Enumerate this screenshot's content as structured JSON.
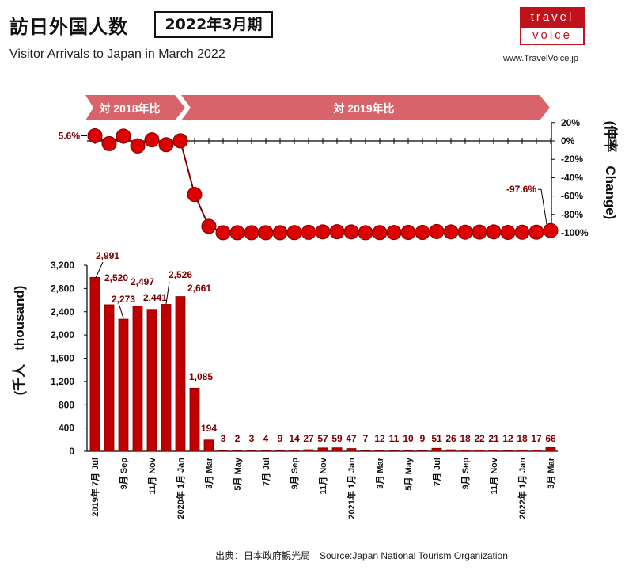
{
  "header": {
    "title": "訪日外国人数",
    "badge": "2022年3月期",
    "subtitle": "Visitor Arrivals to Japan in March 2022",
    "logo_top": "travel",
    "logo_bottom": "voice",
    "site": "www.TravelVoice.jp",
    "source": "出典：日本政府観光局　Source:Japan  National Tourism  Organization"
  },
  "colors": {
    "bar": "#c00000",
    "bar_stroke": "#7a0000",
    "dot": "#dd0000",
    "label": "#7a0000",
    "ribbon": "#d9636b"
  },
  "chart_data": [
    {
      "type": "line",
      "ribbons": [
        "対 2018年比",
        "対 2019年比"
      ],
      "ylabel": "(伸率　Change)",
      "yticks": [
        "20%",
        "0%",
        "-20%",
        "-40%",
        "-60%",
        "-80%",
        "-100%"
      ],
      "ylim": [
        -100,
        20
      ],
      "values": [
        5.6,
        -2.9,
        5.3,
        -5.5,
        1.2,
        -4.1,
        0.1,
        -58.3,
        -93.0,
        -99.9,
        -99.9,
        -99.9,
        -99.9,
        -99.9,
        -99.8,
        -99.5,
        -99.0,
        -98.8,
        -99.0,
        -99.9,
        -99.8,
        -99.7,
        -99.6,
        -99.6,
        -98.6,
        -99.0,
        -99.3,
        -99.2,
        -99.0,
        -99.6,
        -99.4,
        -99.3,
        -97.6
      ],
      "annotations": [
        {
          "index": 0,
          "text": "5.6%"
        },
        {
          "index": 32,
          "text": "-97.6%"
        }
      ]
    },
    {
      "type": "bar",
      "ylabel": "(千人　thousand)",
      "ylim": [
        0,
        3200
      ],
      "yticks": [
        "0",
        "400",
        "800",
        "1,200",
        "1,600",
        "2,000",
        "2,400",
        "2,800",
        "3,200"
      ],
      "values": [
        2991,
        2520,
        2273,
        2497,
        2441,
        2526,
        2661,
        1085,
        194,
        3,
        2,
        3,
        4,
        9,
        14,
        27,
        57,
        59,
        47,
        7,
        12,
        11,
        10,
        9,
        51,
        26,
        18,
        22,
        21,
        12,
        18,
        17,
        66
      ],
      "data_labels": [
        "2,991",
        "2,520",
        "2,273",
        "2,497",
        "2,441",
        "2,526",
        "2,661",
        "1,085",
        "194",
        "3",
        "2",
        "3",
        "4",
        "9",
        "14",
        "27",
        "57",
        "59",
        "47",
        "7",
        "12",
        "11",
        "10",
        "9",
        "51",
        "26",
        "18",
        "22",
        "21",
        "12",
        "18",
        "17",
        "66"
      ],
      "x_tick_labels": [
        {
          "index": 0,
          "text": "2019年 7月 Jul"
        },
        {
          "index": 2,
          "text": "9月 Sep"
        },
        {
          "index": 4,
          "text": "11月 Nov"
        },
        {
          "index": 6,
          "text": "2020年 1月 Jan"
        },
        {
          "index": 8,
          "text": "3月 Mar"
        },
        {
          "index": 10,
          "text": "5月 May"
        },
        {
          "index": 12,
          "text": "7月 Jul"
        },
        {
          "index": 14,
          "text": "9月 Sep"
        },
        {
          "index": 16,
          "text": "11月 Nov"
        },
        {
          "index": 18,
          "text": "2021年 1月 Jan"
        },
        {
          "index": 20,
          "text": "3月 Mar"
        },
        {
          "index": 22,
          "text": "5月 May"
        },
        {
          "index": 24,
          "text": "7月 Jul"
        },
        {
          "index": 26,
          "text": "9月 Sep"
        },
        {
          "index": 28,
          "text": "11月 Nov"
        },
        {
          "index": 30,
          "text": "2022年 1月 Jan"
        },
        {
          "index": 32,
          "text": "3月 Mar"
        }
      ]
    }
  ]
}
